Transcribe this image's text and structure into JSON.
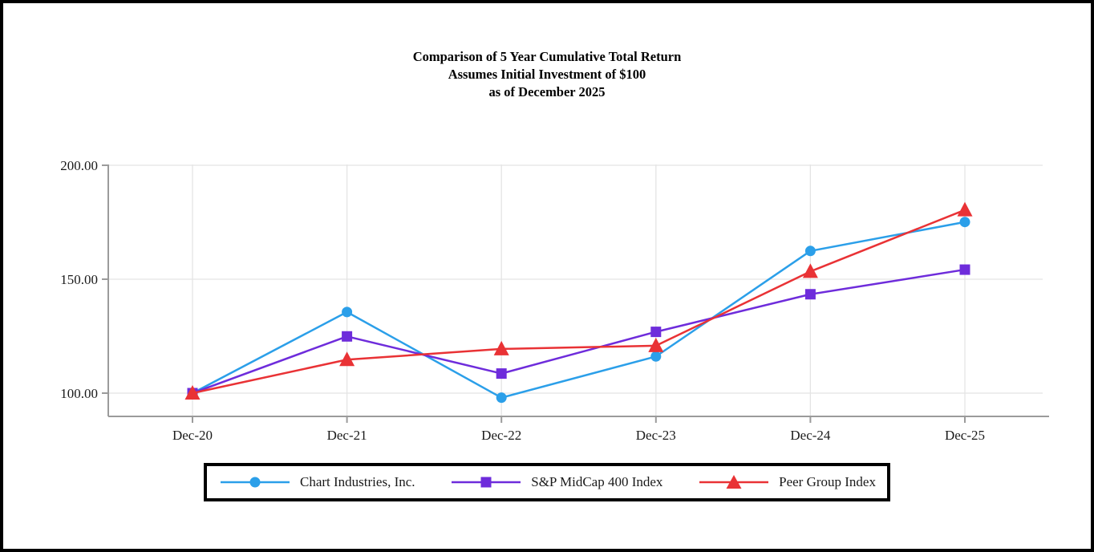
{
  "chart_data": {
    "type": "line",
    "title": "Comparison of 5 Year Cumulative Total Return",
    "subtitle": "Assumes Initial Investment of $100",
    "as_of": "as of December 2025",
    "categories": [
      "Dec-20",
      "Dec-21",
      "Dec-22",
      "Dec-23",
      "Dec-24",
      "Dec-25"
    ],
    "y_ticks": [
      {
        "label": "200.00",
        "value": 200
      },
      {
        "label": "150.00",
        "value": 150
      },
      {
        "label": "100.00",
        "value": 100
      }
    ],
    "ylim": [
      90,
      202
    ],
    "grid": true,
    "legend_position": "bottom",
    "series": [
      {
        "name": "Chart Industries, Inc.",
        "marker": "circle",
        "color": "#2B9FE9",
        "values": [
          100.0,
          135.6,
          98.0,
          116.1,
          162.4,
          175.1
        ]
      },
      {
        "name": "S&P MidCap 400 Index",
        "marker": "square",
        "color": "#6E2CDB",
        "values": [
          100.0,
          124.9,
          108.6,
          126.9,
          143.4,
          154.2
        ]
      },
      {
        "name": "Peer Group Index",
        "marker": "triangle",
        "color": "#E93235",
        "values": [
          100.0,
          114.7,
          119.4,
          120.8,
          153.4,
          180.4
        ]
      }
    ]
  }
}
